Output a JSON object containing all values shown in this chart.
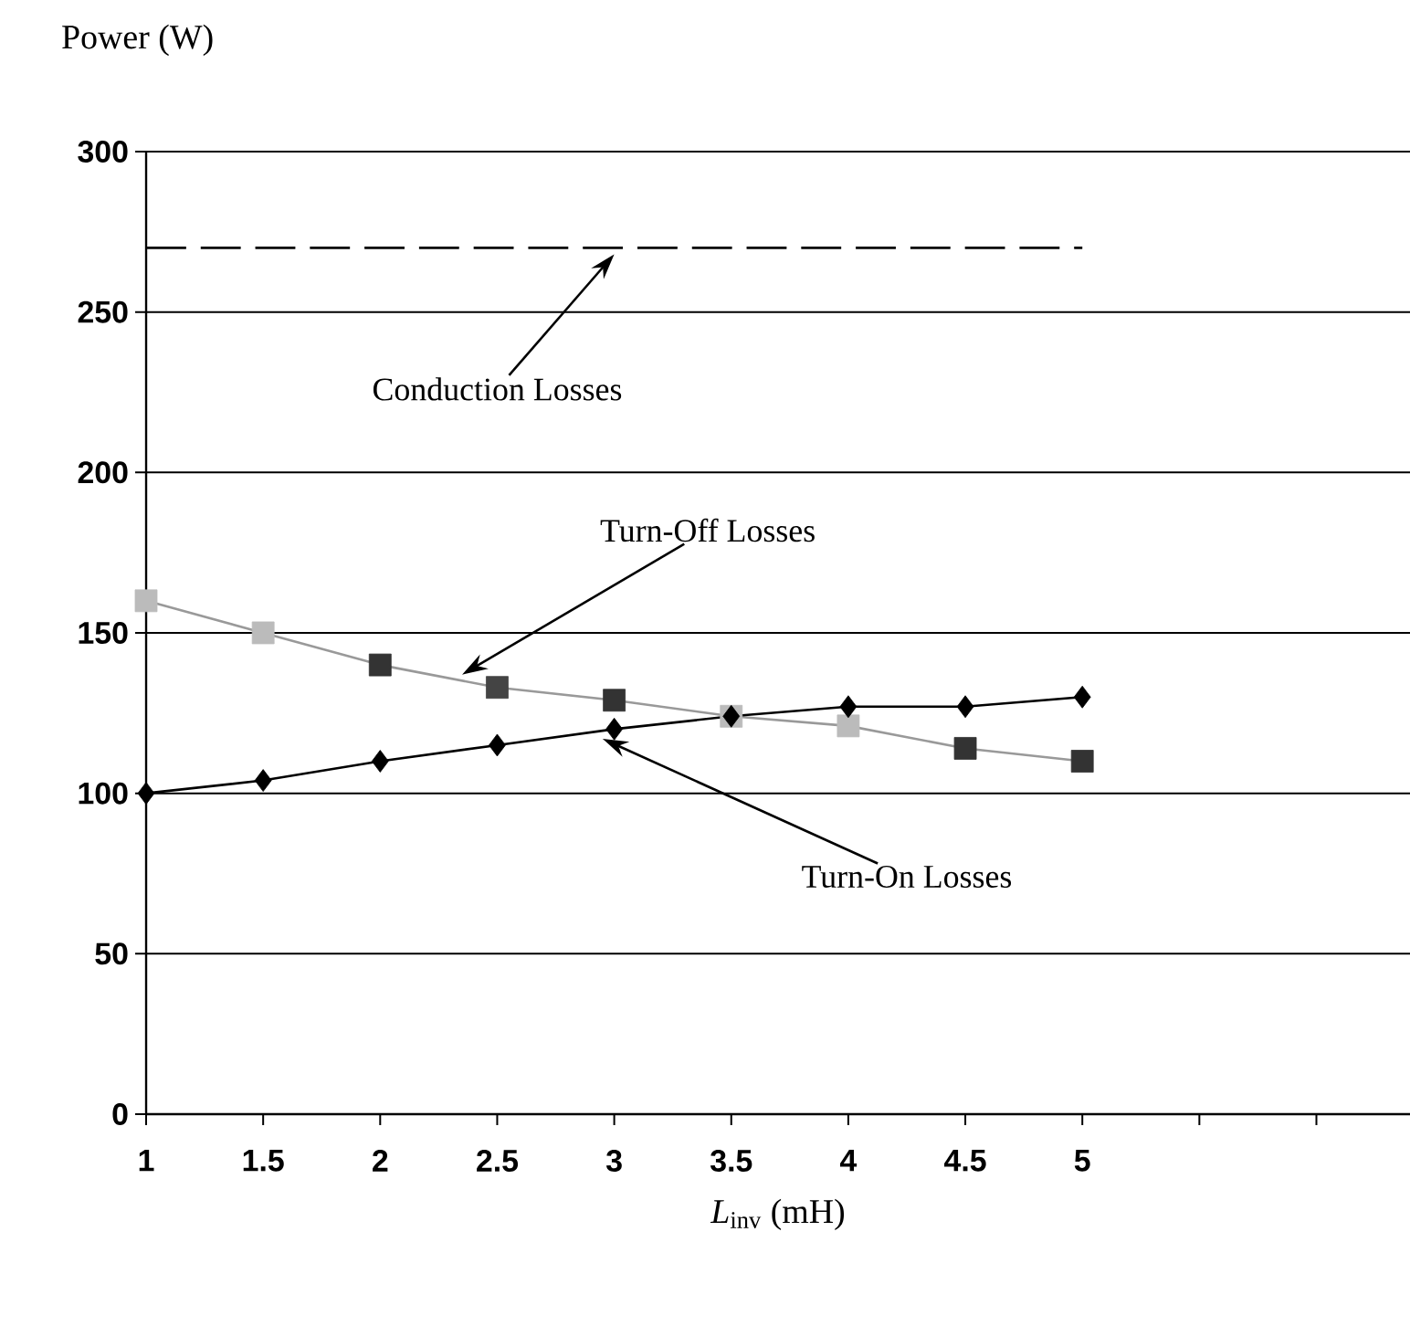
{
  "chart_data": {
    "type": "line",
    "ylabel": "Power (W)",
    "xlabel": "*L*$_{inv}$ (mH)",
    "x": [
      1,
      1.5,
      2,
      2.5,
      3,
      3.5,
      4,
      4.5,
      5
    ],
    "xlim": [
      1,
      6.4
    ],
    "xticks": [
      1,
      1.5,
      2,
      2.5,
      3,
      3.5,
      4,
      4.5,
      5,
      {
        "value": 5.5,
        "label": null
      },
      {
        "value": 6,
        "label": null
      }
    ],
    "ylim": [
      0,
      300
    ],
    "yticks": [
      0,
      50,
      100,
      150,
      200,
      250,
      300
    ],
    "grid": "y",
    "series": [
      {
        "color": "#000000",
        "marker": "none",
        "line_style": "dashed",
        "values": [
          270,
          270,
          270,
          270,
          270,
          270,
          270,
          270,
          270
        ]
      },
      {
        "color": "#999999",
        "marker": "square",
        "line_style": "solid",
        "colors": [
          "#bbbbbb",
          "#bbbbbb",
          "#333333",
          "#444444",
          "#333333",
          "#bbbbbb",
          "#bbbbbb",
          "#333333",
          "#333333"
        ],
        "values": [
          160,
          150,
          140,
          133,
          129,
          124,
          121,
          114,
          110
        ]
      },
      {
        "color": "#000000",
        "marker": "diamond",
        "line_style": "solid",
        "values": [
          100,
          104,
          110,
          115,
          120,
          124,
          127,
          127,
          130
        ]
      }
    ],
    "annotations": [
      {
        "text": "Conduction Losses",
        "x": 3,
        "y": 268
      },
      {
        "text": "Turn-Off Losses",
        "x": 2.35,
        "y": 137
      },
      {
        "text": "Turn-On Losses",
        "x": 2.95,
        "y": 117
      }
    ]
  }
}
